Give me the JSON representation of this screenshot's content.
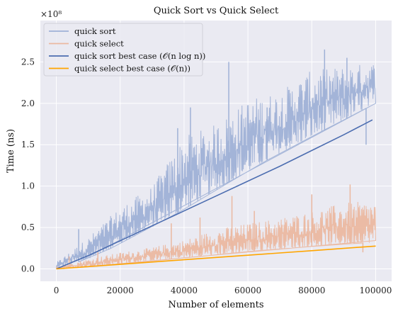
{
  "chart_data": {
    "type": "line",
    "title": "Quick Sort vs Quick Select",
    "xlabel": "Number of elements",
    "ylabel": "Time (ns)",
    "y_scale_label": "×10⁸",
    "xlim": [
      -5000,
      105000
    ],
    "ylim": [
      -15000000,
      300000000
    ],
    "x_ticks": [
      0,
      20000,
      40000,
      60000,
      80000,
      100000
    ],
    "x_tick_labels": [
      "0",
      "20000",
      "40000",
      "60000",
      "80000",
      "100000"
    ],
    "y_ticks": [
      0,
      50000000,
      100000000,
      150000000,
      200000000,
      250000000
    ],
    "y_tick_labels": [
      "0.0",
      "0.5",
      "1.0",
      "1.5",
      "2.0",
      "2.5"
    ],
    "grid": true,
    "legend_position": "top-left",
    "series": [
      {
        "name": "quick sort",
        "color": "#9fb1d6",
        "style": "noisy-band",
        "x": [
          0,
          10000,
          20000,
          30000,
          40000,
          50000,
          60000,
          70000,
          80000,
          90000,
          100000
        ],
        "y_low": [
          0,
          12000000,
          30000000,
          50000000,
          72000000,
          95000000,
          118000000,
          140000000,
          160000000,
          180000000,
          200000000
        ],
        "y_high": [
          8000000,
          38000000,
          75000000,
          100000000,
          160000000,
          175000000,
          205000000,
          215000000,
          240000000,
          245000000,
          250000000
        ],
        "peaks": [
          [
            7000,
            48000000
          ],
          [
            17000,
            58000000
          ],
          [
            38000,
            170000000
          ],
          [
            42000,
            195000000
          ],
          [
            54000,
            250000000
          ],
          [
            66000,
            195000000
          ],
          [
            84000,
            265000000
          ],
          [
            91000,
            255000000
          ],
          [
            97000,
            150000000
          ]
        ]
      },
      {
        "name": "quick select",
        "color": "#ebb8a0",
        "style": "noisy-band",
        "x": [
          0,
          10000,
          20000,
          30000,
          40000,
          50000,
          60000,
          70000,
          80000,
          90000,
          100000
        ],
        "y_low": [
          0,
          2000000,
          6000000,
          10000000,
          13000000,
          17000000,
          21000000,
          24000000,
          27000000,
          30000000,
          32000000
        ],
        "y_high": [
          3000000,
          12000000,
          20000000,
          26000000,
          35000000,
          48000000,
          55000000,
          62000000,
          70000000,
          80000000,
          82000000
        ],
        "peaks": [
          [
            4000,
            15000000
          ],
          [
            13000,
            20000000
          ],
          [
            36000,
            55000000
          ],
          [
            45000,
            62000000
          ],
          [
            55000,
            88000000
          ],
          [
            62000,
            70000000
          ],
          [
            80000,
            90000000
          ],
          [
            92000,
            102000000
          ],
          [
            96000,
            20000000
          ]
        ]
      },
      {
        "name": "quick sort best case (𝒪(n log n))",
        "color": "#4c6db0",
        "style": "line",
        "x": [
          0,
          10000,
          20000,
          30000,
          40000,
          50000,
          60000,
          70000,
          80000,
          90000,
          99000
        ],
        "y": [
          0,
          16000000,
          34000000,
          52000000,
          70000000,
          88000000,
          106000000,
          124000000,
          143000000,
          162000000,
          180000000
        ]
      },
      {
        "name": "quick select best case (𝒪(n))",
        "color": "#ffa500",
        "style": "line",
        "x": [
          0,
          20000,
          40000,
          60000,
          80000,
          100000
        ],
        "y": [
          0,
          5500000,
          11000000,
          16500000,
          22000000,
          27500000
        ]
      }
    ]
  }
}
